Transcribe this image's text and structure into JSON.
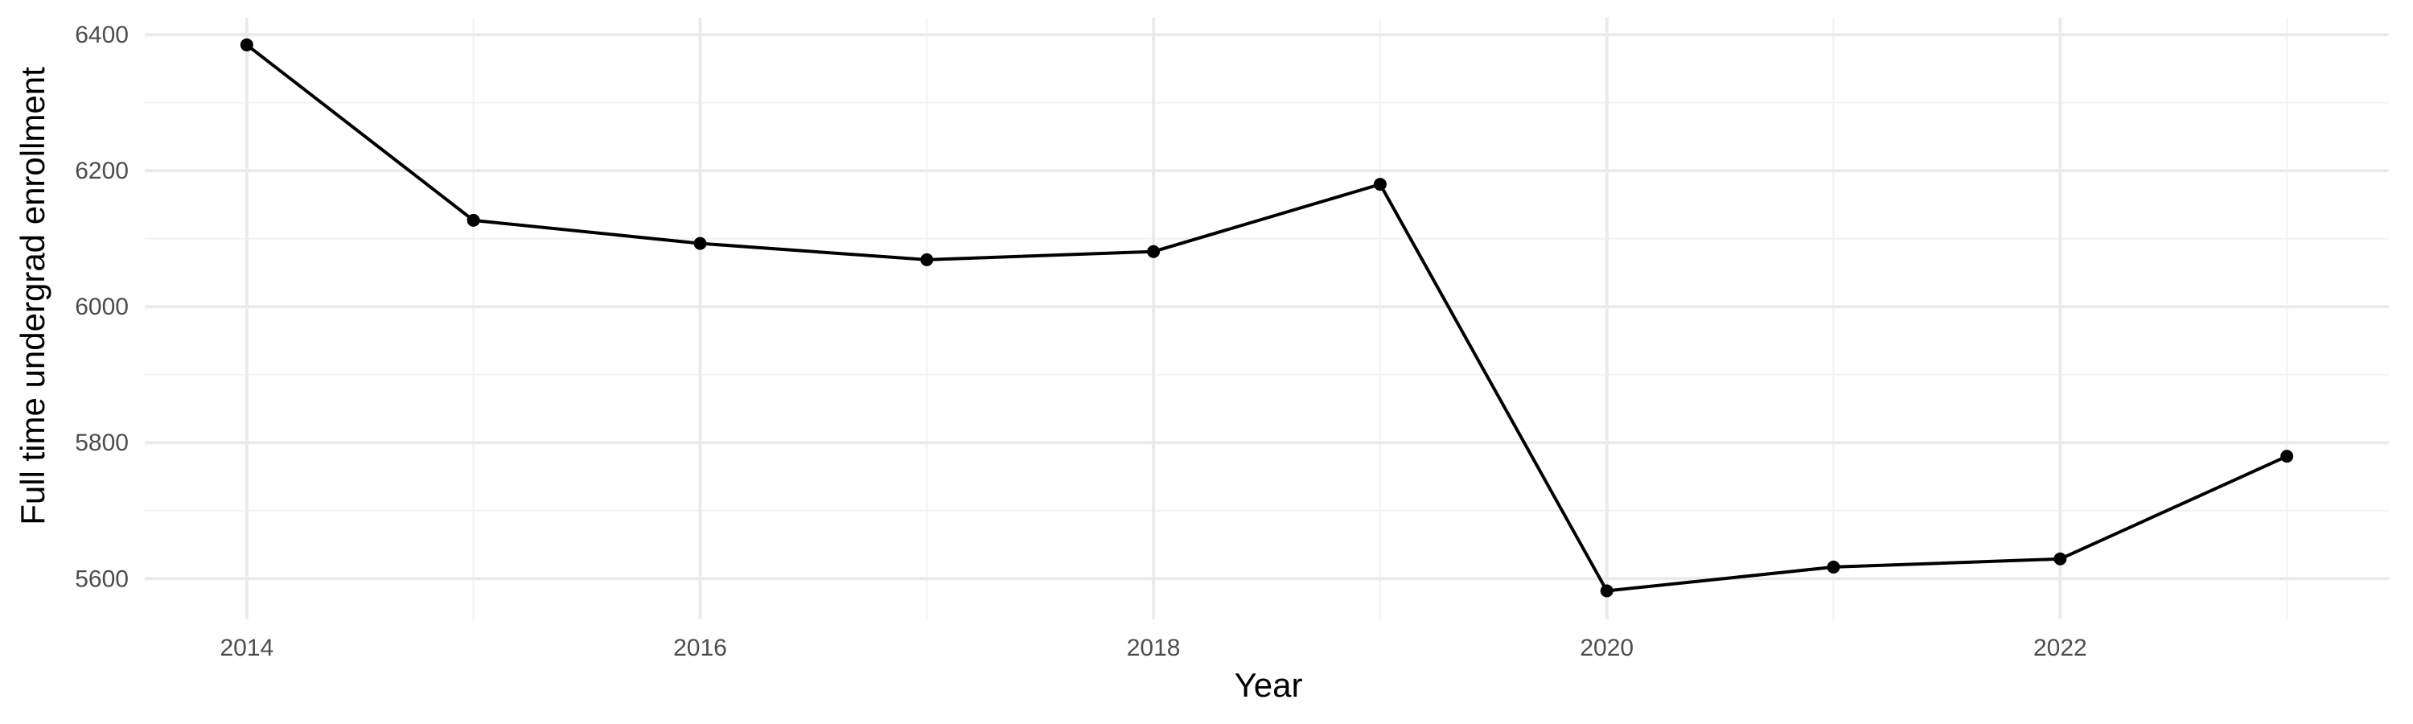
{
  "chart_data": {
    "type": "line",
    "title": "",
    "xlabel": "Year",
    "ylabel": "Full time undergrad enrollment",
    "x": [
      2014,
      2015,
      2016,
      2017,
      2018,
      2019,
      2020,
      2021,
      2022,
      2023
    ],
    "series": [
      {
        "values": [
          6385,
          6127,
          6093,
          6069,
          6081,
          6180,
          5582,
          5617,
          5629,
          5780
        ]
      }
    ],
    "xlim": [
      2013.55,
      2023.45
    ],
    "ylim": [
      5540,
      6425
    ],
    "x_ticks": [
      2014,
      2016,
      2018,
      2020,
      2022
    ],
    "x_tick_labels": [
      "2014",
      "2016",
      "2018",
      "2020",
      "2022"
    ],
    "x_minor_ticks": [
      2015,
      2017,
      2019,
      2021,
      2023
    ],
    "y_ticks": [
      5600,
      5800,
      6000,
      6200,
      6400
    ],
    "y_tick_labels": [
      "5600",
      "5800",
      "6000",
      "6200",
      "6400"
    ],
    "y_minor_ticks": [
      5700,
      5900,
      6100,
      6300
    ],
    "grid": true,
    "legend": "none",
    "line_color": "#000000",
    "point_color": "#000000",
    "grid_color": "#ebebeb"
  }
}
